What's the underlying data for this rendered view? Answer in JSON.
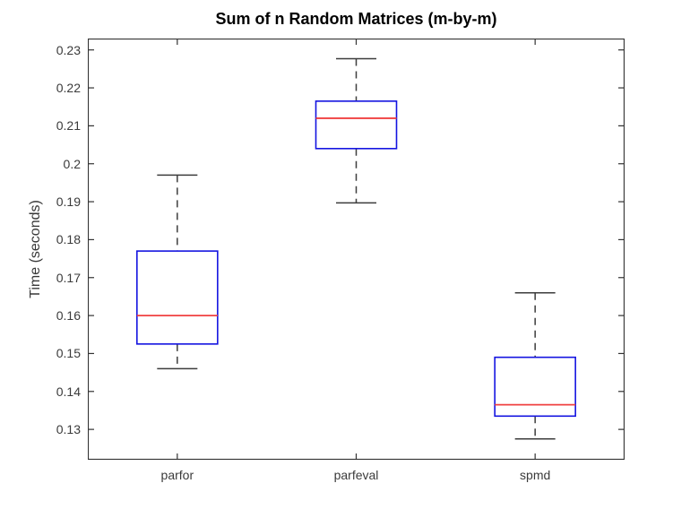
{
  "figure": {
    "background": "#ffffff"
  },
  "chart_data": {
    "type": "boxplot",
    "title": "Sum of n Random Matrices (m-by-m)",
    "xlabel": "",
    "ylabel": "Time (seconds)",
    "categories": [
      "parfor",
      "parfeval",
      "spmd"
    ],
    "ylim": [
      0.122,
      0.233
    ],
    "yticks": [
      0.13,
      0.14,
      0.15,
      0.16,
      0.17,
      0.18,
      0.19,
      0.2,
      0.21,
      0.22,
      0.23
    ],
    "ytick_labels": [
      "0.13",
      "0.14",
      "0.15",
      "0.16",
      "0.17",
      "0.18",
      "0.19",
      "0.2",
      "0.21",
      "0.22",
      "0.23"
    ],
    "grid": false,
    "legend": null,
    "series": [
      {
        "name": "parfor",
        "whisker_low": 0.146,
        "q1": 0.1525,
        "median": 0.16,
        "q3": 0.177,
        "whisker_high": 0.197
      },
      {
        "name": "parfeval",
        "whisker_low": 0.1897,
        "q1": 0.204,
        "median": 0.212,
        "q3": 0.2165,
        "whisker_high": 0.2277
      },
      {
        "name": "spmd",
        "whisker_low": 0.1275,
        "q1": 0.1335,
        "median": 0.1365,
        "q3": 0.149,
        "whisker_high": 0.166
      }
    ],
    "style": {
      "box_color": "#1414e0",
      "median_color": "#f04040",
      "whisker_color": "#3c3c3c",
      "axis_color": "#333333",
      "tick_label_color": "#3a3a3a"
    }
  }
}
